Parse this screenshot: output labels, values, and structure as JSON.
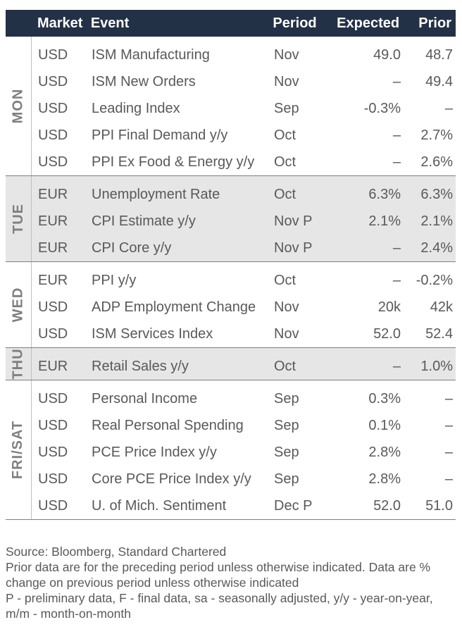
{
  "header": {
    "market": "Market",
    "event": "Event",
    "period": "Period",
    "expected": "Expected",
    "prior": "Prior"
  },
  "groups": [
    {
      "day": "MON",
      "rows": [
        {
          "market": "USD",
          "event": "ISM Manufacturing",
          "period": "Nov",
          "expected": "49.0",
          "prior": "48.7"
        },
        {
          "market": "USD",
          "event": "ISM New Orders",
          "period": "Nov",
          "expected": "–",
          "prior": "49.4"
        },
        {
          "market": "USD",
          "event": "Leading Index",
          "period": "Sep",
          "expected": "-0.3%",
          "prior": "–"
        },
        {
          "market": "USD",
          "event": "PPI Final Demand y/y",
          "period": "Oct",
          "expected": "–",
          "prior": "2.7%"
        },
        {
          "market": "USD",
          "event": "PPI Ex Food & Energy y/y",
          "period": "Oct",
          "expected": "–",
          "prior": "2.6%"
        }
      ]
    },
    {
      "day": "TUE",
      "rows": [
        {
          "market": "EUR",
          "event": "Unemployment Rate",
          "period": "Oct",
          "expected": "6.3%",
          "prior": "6.3%"
        },
        {
          "market": "EUR",
          "event": "CPI Estimate y/y",
          "period": "Nov P",
          "expected": "2.1%",
          "prior": "2.1%"
        },
        {
          "market": "EUR",
          "event": "CPI Core y/y",
          "period": "Nov P",
          "expected": "–",
          "prior": "2.4%"
        }
      ]
    },
    {
      "day": "WED",
      "rows": [
        {
          "market": "EUR",
          "event": "PPI y/y",
          "period": "Oct",
          "expected": "–",
          "prior": "-0.2%"
        },
        {
          "market": "USD",
          "event": "ADP Employment Change",
          "period": "Nov",
          "expected": "20k",
          "prior": "42k"
        },
        {
          "market": "USD",
          "event": "ISM Services Index",
          "period": "Nov",
          "expected": "52.0",
          "prior": "52.4"
        }
      ]
    },
    {
      "day": "THU",
      "rows": [
        {
          "market": "EUR",
          "event": "Retail Sales y/y",
          "period": "Oct",
          "expected": "–",
          "prior": "1.0%"
        }
      ]
    },
    {
      "day": "FRI/SAT",
      "rows": [
        {
          "market": "USD",
          "event": "Personal Income",
          "period": "Sep",
          "expected": "0.3%",
          "prior": "–"
        },
        {
          "market": "USD",
          "event": "Real Personal Spending",
          "period": "Sep",
          "expected": "0.1%",
          "prior": "–"
        },
        {
          "market": "USD",
          "event": "PCE Price Index y/y",
          "period": "Sep",
          "expected": "2.8%",
          "prior": "–"
        },
        {
          "market": "USD",
          "event": "Core PCE Price Index y/y",
          "period": "Sep",
          "expected": "2.8%",
          "prior": "–"
        },
        {
          "market": "USD",
          "event": "U. of Mich. Sentiment",
          "period": "Dec P",
          "expected": "52.0",
          "prior": "51.0"
        }
      ]
    }
  ],
  "footer": {
    "source": "Source: Bloomberg, Standard Chartered",
    "note1": "Prior data are for the preceding period unless otherwise indicated. Data are % change on previous period unless otherwise indicated",
    "note2": "P - preliminary data, F - final data, sa - seasonally adjusted, y/y - year-on-year, m/m - month-on-month"
  },
  "colors": {
    "header_bg": "#233147",
    "shaded_bg": "#e6e6e6",
    "text": "#595959"
  }
}
